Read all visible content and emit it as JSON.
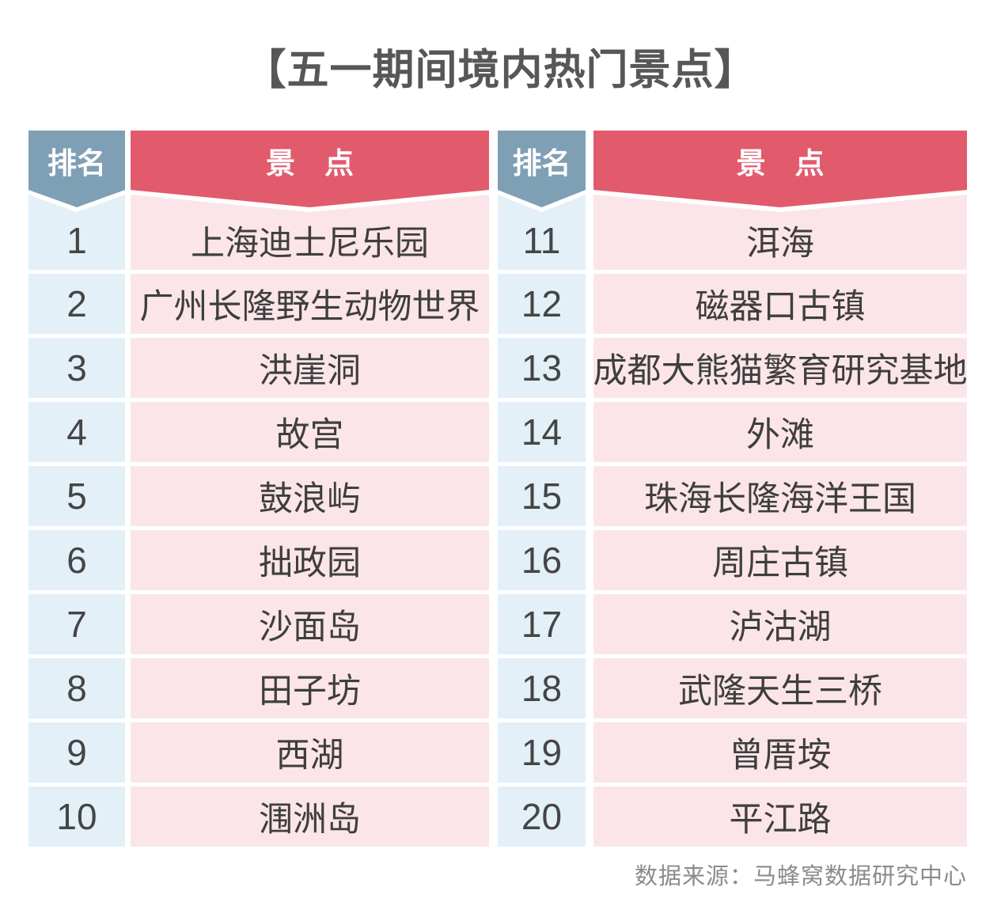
{
  "title": "【五一期间境内热门景点】",
  "headers": {
    "rank": "排名",
    "spot": "景　点"
  },
  "source": "数据来源：马蜂窝数据研究中心",
  "colors": {
    "header_blue": "#7f9fb5",
    "header_red": "#e15b6d",
    "row_blue": "#e3f0f8",
    "row_pink": "#fbe5e8",
    "header_text": "#ffffff",
    "cell_text": "#3e3e3e",
    "title_text": "#585656",
    "source_text": "#8b8b8b"
  },
  "tables": [
    {
      "rows": [
        {
          "rank": "1",
          "spot": "上海迪士尼乐园"
        },
        {
          "rank": "2",
          "spot": "广州长隆野生动物世界"
        },
        {
          "rank": "3",
          "spot": "洪崖洞"
        },
        {
          "rank": "4",
          "spot": "故宫"
        },
        {
          "rank": "5",
          "spot": "鼓浪屿"
        },
        {
          "rank": "6",
          "spot": "拙政园"
        },
        {
          "rank": "7",
          "spot": "沙面岛"
        },
        {
          "rank": "8",
          "spot": "田子坊"
        },
        {
          "rank": "9",
          "spot": "西湖"
        },
        {
          "rank": "10",
          "spot": "涠洲岛"
        }
      ]
    },
    {
      "rows": [
        {
          "rank": "11",
          "spot": "洱海"
        },
        {
          "rank": "12",
          "spot": "磁器口古镇"
        },
        {
          "rank": "13",
          "spot": "成都大熊猫繁育研究基地"
        },
        {
          "rank": "14",
          "spot": "外滩"
        },
        {
          "rank": "15",
          "spot": "珠海长隆海洋王国"
        },
        {
          "rank": "16",
          "spot": "周庄古镇"
        },
        {
          "rank": "17",
          "spot": "泸沽湖"
        },
        {
          "rank": "18",
          "spot": "武隆天生三桥"
        },
        {
          "rank": "19",
          "spot": "曾厝垵"
        },
        {
          "rank": "20",
          "spot": "平江路"
        }
      ]
    }
  ]
}
